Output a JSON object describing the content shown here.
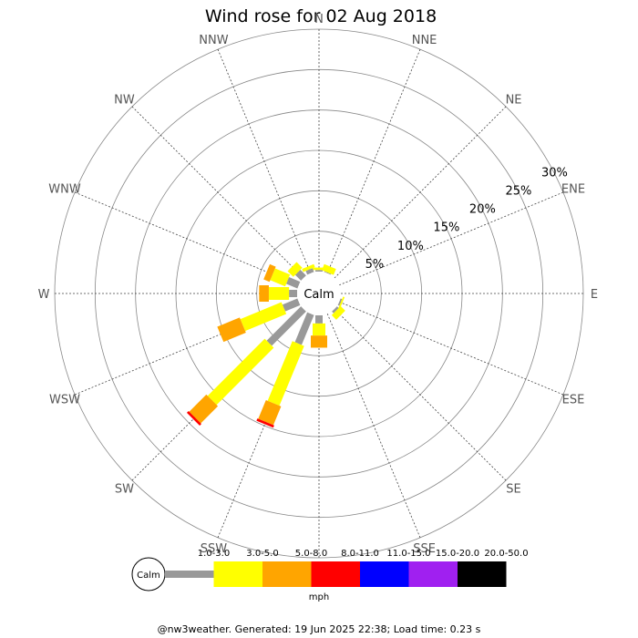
{
  "chart_data": {
    "type": "wind_rose",
    "title": "Wind rose for 02 Aug 2018",
    "directions": [
      "N",
      "NNE",
      "NE",
      "ENE",
      "E",
      "ESE",
      "SE",
      "SSE",
      "S",
      "SSW",
      "SW",
      "WSW",
      "W",
      "WNW",
      "NW",
      "NNW"
    ],
    "radial_ticks": [
      5,
      10,
      15,
      20,
      25,
      30
    ],
    "radial_tick_labels": [
      "5%",
      "10%",
      "15%",
      "20%",
      "25%",
      "30%"
    ],
    "rmax": 30,
    "calm_label": "Calm",
    "speed_unit": "mph",
    "speed_bins": [
      {
        "label": "1.0-3.0",
        "color": "#999999"
      },
      {
        "label": "3.0-5.0",
        "color": "#ffff00"
      },
      {
        "label": "5.0-8.0",
        "color": "#ffa500"
      },
      {
        "label": "8.0-11.0",
        "color": "#ff0000"
      },
      {
        "label": "11.0-15.0",
        "color": "#0000ff"
      },
      {
        "label": "15.0-20.0",
        "color": "#a020f0"
      },
      {
        "label": "20.0-50.0",
        "color": "#000000"
      }
    ],
    "series": [
      {
        "direction": "N",
        "values": [
          0.2,
          0.3,
          0,
          0,
          0,
          0,
          0
        ]
      },
      {
        "direction": "NNE",
        "values": [
          0.1,
          0.8,
          0,
          0,
          0,
          0,
          0
        ]
      },
      {
        "direction": "NE",
        "values": [
          0,
          0,
          0,
          0,
          0,
          0,
          0
        ]
      },
      {
        "direction": "ENE",
        "values": [
          0,
          0,
          0,
          0,
          0,
          0,
          0
        ]
      },
      {
        "direction": "E",
        "values": [
          0,
          0,
          0,
          0,
          0,
          0,
          0
        ]
      },
      {
        "direction": "ESE",
        "values": [
          0.2,
          0.2,
          0,
          0,
          0,
          0,
          0
        ]
      },
      {
        "direction": "SE",
        "values": [
          0.3,
          0.8,
          0,
          0,
          0,
          0,
          0
        ]
      },
      {
        "direction": "SSE",
        "values": [
          0,
          0,
          0,
          0,
          0,
          0,
          0
        ]
      },
      {
        "direction": "S",
        "values": [
          1.0,
          1.5,
          1.5,
          0,
          0,
          0,
          0
        ]
      },
      {
        "direction": "SSW",
        "values": [
          4.0,
          8.0,
          2.5,
          0.3,
          0,
          0,
          0
        ]
      },
      {
        "direction": "SW",
        "values": [
          6.0,
          10.0,
          3.0,
          0.3,
          0,
          0,
          0
        ]
      },
      {
        "direction": "WSW",
        "values": [
          2.0,
          5.5,
          3.0,
          0,
          0,
          0,
          0
        ]
      },
      {
        "direction": "W",
        "values": [
          1.0,
          2.5,
          1.2,
          0,
          0,
          0,
          0
        ]
      },
      {
        "direction": "WNW",
        "values": [
          1.5,
          2.0,
          0.8,
          0,
          0,
          0,
          0
        ]
      },
      {
        "direction": "NW",
        "values": [
          1.0,
          1.0,
          0,
          0,
          0,
          0,
          0
        ]
      },
      {
        "direction": "NNW",
        "values": [
          0.5,
          0.4,
          0,
          0,
          0,
          0,
          0
        ]
      }
    ]
  },
  "footer": "@nw3weather. Generated: 19 Jun 2025 22:38; Load time: 0.23 s"
}
